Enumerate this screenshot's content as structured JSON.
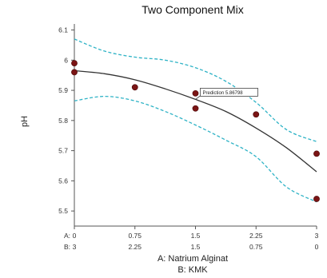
{
  "chart_data": {
    "type": "scatter",
    "title": "Two Component Mix",
    "ylabel": "pH",
    "xlabel_lines": [
      "A: Natrium Alginat",
      "B: KMK"
    ],
    "ylim": [
      5.45,
      6.12
    ],
    "y_ticks": [
      5.5,
      5.6,
      5.7,
      5.8,
      5.9,
      6,
      6.1
    ],
    "y_tick_labels": [
      "5.5",
      "5.6",
      "5.7",
      "5.8",
      "5.9",
      "6",
      "6.1"
    ],
    "xlim": [
      0,
      3
    ],
    "x_tick_values": [
      0,
      0.75,
      1.5,
      2.25,
      3
    ],
    "x_tick_labels_A": [
      "0",
      "0.75",
      "1.5",
      "2.25",
      "3"
    ],
    "x_tick_labels_B": [
      "3",
      "2.25",
      "1.5",
      "0.75",
      "0"
    ],
    "x_tick_prefix_A": "A:",
    "x_tick_prefix_B": "B:",
    "points": [
      {
        "x": 0,
        "y": 5.99
      },
      {
        "x": 0,
        "y": 5.96
      },
      {
        "x": 0.75,
        "y": 5.91
      },
      {
        "x": 1.5,
        "y": 5.89
      },
      {
        "x": 1.5,
        "y": 5.84
      },
      {
        "x": 2.25,
        "y": 5.82
      },
      {
        "x": 3,
        "y": 5.69
      },
      {
        "x": 3,
        "y": 5.54
      }
    ],
    "fit_line": {
      "x": [
        0,
        0.375,
        0.75,
        1.125,
        1.5,
        1.875,
        2.25,
        2.625,
        3
      ],
      "y": [
        5.965,
        5.955,
        5.935,
        5.905,
        5.87,
        5.83,
        5.775,
        5.71,
        5.63
      ]
    },
    "upper_band": {
      "x": [
        0,
        0.375,
        0.75,
        1.125,
        1.5,
        1.875,
        2.25,
        2.625,
        3
      ],
      "y": [
        6.07,
        6.03,
        6.01,
        6.0,
        5.975,
        5.93,
        5.86,
        5.77,
        5.73
      ]
    },
    "lower_band": {
      "x": [
        0,
        0.375,
        0.75,
        1.125,
        1.5,
        1.875,
        2.25,
        2.625,
        3
      ],
      "y": [
        5.865,
        5.88,
        5.865,
        5.83,
        5.785,
        5.735,
        5.68,
        5.58,
        5.53
      ]
    },
    "annotation": {
      "text": "Prediction 5.86798",
      "x": 1.5,
      "y": 5.87
    },
    "colors": {
      "point": "#7a1414",
      "fit": "#333333",
      "band": "#2fb3c6",
      "axis": "#555555"
    }
  }
}
